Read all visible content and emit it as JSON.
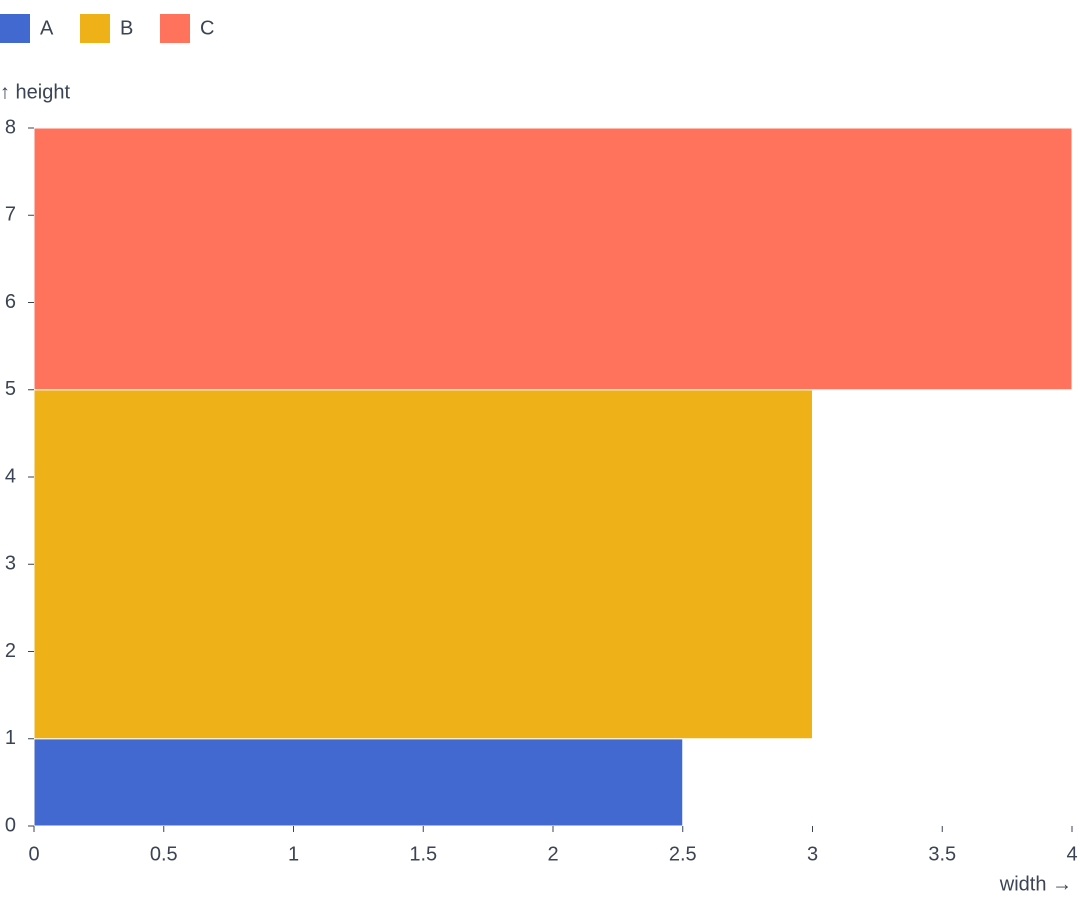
{
  "chart_data": {
    "type": "rect",
    "categories": [
      "A",
      "B",
      "C"
    ],
    "widths": [
      2.5,
      3,
      4
    ],
    "heights": [
      1,
      4,
      3
    ],
    "colors": [
      "#4269d0",
      "#efb118",
      "#ff725c"
    ],
    "xlabel": "width →",
    "ylabel": "↑ height",
    "xlim": [
      0,
      4
    ],
    "xticks": [
      0,
      0.5,
      1,
      1.5,
      2,
      2.5,
      3,
      3.5,
      4
    ],
    "ylim": [
      0,
      8
    ],
    "yticks": [
      0,
      1,
      2,
      3,
      4,
      5,
      6,
      7,
      8
    ],
    "legend": "top-left"
  }
}
